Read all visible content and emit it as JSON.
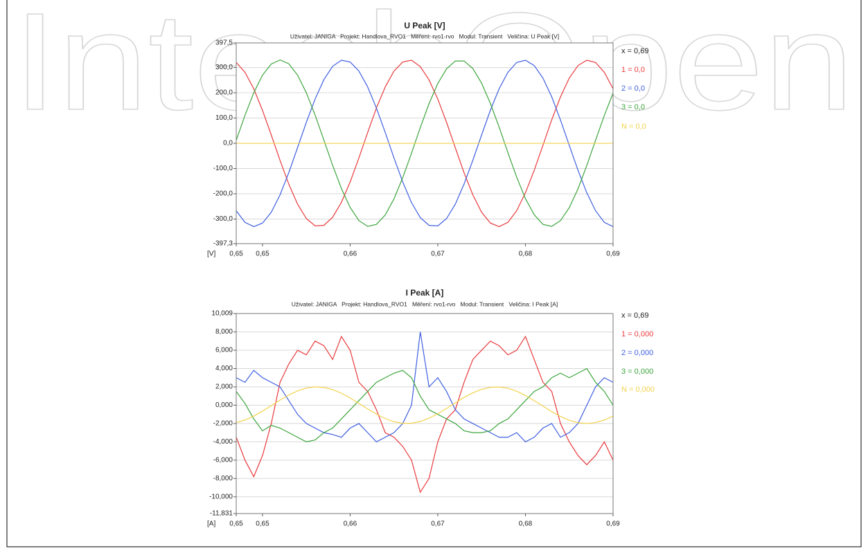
{
  "watermark": "IntechOpen",
  "chart_data": [
    {
      "type": "line",
      "title": "U Peak [V]",
      "subtitle": "Uživatel: JANIGA   Projekt: Handlova_RVO1   Měření: rvo1-rvo   Modul: Transient   Veličina: U Peak [V]",
      "y_unit": "[V]",
      "cursor_label": "x = 0,69",
      "x": [
        0.647,
        0.648,
        0.649,
        0.65,
        0.651,
        0.652,
        0.653,
        0.654,
        0.655,
        0.656,
        0.657,
        0.658,
        0.659,
        0.66,
        0.661,
        0.662,
        0.663,
        0.664,
        0.665,
        0.666,
        0.667,
        0.668,
        0.669,
        0.67,
        0.671,
        0.672,
        0.673,
        0.674,
        0.675,
        0.676,
        0.677,
        0.678,
        0.679,
        0.68,
        0.681,
        0.682,
        0.683,
        0.684,
        0.685,
        0.686,
        0.687,
        0.688,
        0.689,
        0.69
      ],
      "xlim": [
        0.647,
        0.69
      ],
      "xticks": [
        {
          "value": 0.647,
          "label": "0,65"
        },
        {
          "value": 0.65,
          "label": "0,65"
        },
        {
          "value": 0.66,
          "label": "0,66"
        },
        {
          "value": 0.67,
          "label": "0,67"
        },
        {
          "value": 0.68,
          "label": "0,68"
        },
        {
          "value": 0.69,
          "label": "0,69"
        }
      ],
      "ylim": [
        -397.3,
        397.5
      ],
      "yticks": [
        {
          "value": 397.5,
          "label": "397,5"
        },
        {
          "value": 300,
          "label": "300,0"
        },
        {
          "value": 200,
          "label": "200,0"
        },
        {
          "value": 100,
          "label": "100,0"
        },
        {
          "value": 0,
          "label": "0,0"
        },
        {
          "value": -100,
          "label": "-100,0"
        },
        {
          "value": -200,
          "label": "-200,0"
        },
        {
          "value": -300,
          "label": "-300,0"
        },
        {
          "value": -397.3,
          "label": "-397,3"
        }
      ],
      "grid": true,
      "series": [
        {
          "name": "1 = 0,0",
          "color": "#e8383a",
          "values": [
            320,
            281,
            216,
            130,
            33,
            -68,
            -162,
            -241,
            -298,
            -327,
            -325,
            -293,
            -234,
            -153,
            -58,
            43,
            140,
            223,
            286,
            322,
            329,
            304,
            251,
            175,
            83,
            -18,
            -117,
            -204,
            -273,
            -316,
            -330,
            -313,
            -267,
            -196,
            -107,
            -8,
            93,
            184,
            258,
            308,
            329,
            320,
            281,
            216
          ]
        },
        {
          "name": "2 = 0,0",
          "color": "#3d5ee0",
          "values": [
            -267,
            -313,
            -330,
            -316,
            -273,
            -204,
            -116,
            -17,
            83,
            175,
            252,
            305,
            329,
            322,
            286,
            223,
            139,
            43,
            -58,
            -153,
            -235,
            -294,
            -325,
            -327,
            -298,
            -241,
            -161,
            -67,
            33,
            131,
            216,
            281,
            320,
            329,
            308,
            258,
            184,
            92,
            -8,
            -107,
            -196,
            -267,
            -313,
            -330
          ]
        },
        {
          "name": "3 = 0,0",
          "color": "#3aa43a",
          "values": [
            12,
            111,
            200,
            270,
            314,
            330,
            315,
            270,
            200,
            112,
            13,
            -87,
            -179,
            -254,
            -306,
            -329,
            -321,
            -284,
            -220,
            -136,
            -39,
            62,
            157,
            237,
            295,
            326,
            326,
            296,
            238,
            158,
            64,
            -37,
            -134,
            -219,
            -283,
            -321,
            -329,
            -306,
            -255,
            -180,
            -88,
            12,
            110,
            199
          ]
        },
        {
          "name": "N = 0,0",
          "color": "#f2d24a",
          "values": [
            0,
            0,
            0,
            0,
            0,
            0,
            0,
            0,
            0,
            0,
            0,
            0,
            0,
            0,
            0,
            0,
            0,
            0,
            0,
            0,
            0,
            0,
            0,
            0,
            0,
            0,
            0,
            0,
            0,
            0,
            0,
            0,
            0,
            0,
            0,
            0,
            0,
            0,
            0,
            0,
            0,
            0,
            0,
            0
          ]
        }
      ]
    },
    {
      "type": "line",
      "title": "I Peak [A]",
      "subtitle": "Uživatel: JANIGA   Projekt: Handlova_RVO1   Měření: rvo1-rvo   Modul: Transient   Veličina: I Peak [A]",
      "y_unit": "[A]",
      "cursor_label": "x = 0,69",
      "x": [
        0.647,
        0.648,
        0.649,
        0.65,
        0.651,
        0.652,
        0.653,
        0.654,
        0.655,
        0.656,
        0.657,
        0.658,
        0.659,
        0.66,
        0.661,
        0.662,
        0.663,
        0.664,
        0.665,
        0.666,
        0.667,
        0.668,
        0.669,
        0.67,
        0.671,
        0.672,
        0.673,
        0.674,
        0.675,
        0.676,
        0.677,
        0.678,
        0.679,
        0.68,
        0.681,
        0.682,
        0.683,
        0.684,
        0.685,
        0.686,
        0.687,
        0.688,
        0.689,
        0.69
      ],
      "xlim": [
        0.647,
        0.69
      ],
      "xticks": [
        {
          "value": 0.647,
          "label": "0,65"
        },
        {
          "value": 0.65,
          "label": "0,65"
        },
        {
          "value": 0.66,
          "label": "0,66"
        },
        {
          "value": 0.67,
          "label": "0,67"
        },
        {
          "value": 0.68,
          "label": "0,68"
        },
        {
          "value": 0.69,
          "label": "0,69"
        }
      ],
      "ylim": [
        -11.831,
        10.009
      ],
      "yticks": [
        {
          "value": 10.009,
          "label": "10,009"
        },
        {
          "value": 8,
          "label": "8,000"
        },
        {
          "value": 6,
          "label": "6,000"
        },
        {
          "value": 4,
          "label": "4,000"
        },
        {
          "value": 2,
          "label": "2,000"
        },
        {
          "value": 0,
          "label": "0,000"
        },
        {
          "value": -2,
          "label": "-2,000"
        },
        {
          "value": -4,
          "label": "-4,000"
        },
        {
          "value": -6,
          "label": "-6,000"
        },
        {
          "value": -8,
          "label": "-8,000"
        },
        {
          "value": -10,
          "label": "-10,000"
        },
        {
          "value": -11.831,
          "label": "-11,831"
        }
      ],
      "grid": true,
      "series": [
        {
          "name": "1 = 0,000",
          "color": "#e8383a",
          "values": [
            -3.5,
            -6,
            -7.8,
            -5.5,
            -2,
            2.5,
            4.5,
            6,
            5.5,
            7,
            6.5,
            5,
            7.5,
            6,
            2.5,
            1.5,
            -0.5,
            -3,
            -3.5,
            -4.5,
            -6,
            -9.5,
            -8,
            -4,
            -1.5,
            -0.5,
            2.5,
            5,
            6,
            7,
            6.5,
            5.5,
            6,
            7.5,
            5,
            2.5,
            1.5,
            -2,
            -4,
            -5.5,
            -6.5,
            -5.5,
            -4,
            -6
          ]
        },
        {
          "name": "2 = 0,000",
          "color": "#3d5ee0",
          "values": [
            3,
            2.5,
            3.8,
            3,
            2.5,
            2,
            0.5,
            -1,
            -2,
            -2.5,
            -3,
            -3.2,
            -3.5,
            -2.5,
            -2,
            -3,
            -4,
            -3.5,
            -3,
            -2,
            0,
            8,
            2,
            3,
            1.5,
            -0.5,
            -1.5,
            -2,
            -2.5,
            -3,
            -3.5,
            -3.5,
            -3,
            -4,
            -3.5,
            -2.5,
            -2,
            -3.5,
            -3,
            -2,
            0,
            2,
            3,
            2.5
          ]
        },
        {
          "name": "3 = 0,000",
          "color": "#3aa43a",
          "values": [
            1.5,
            0.2,
            -1.5,
            -2.8,
            -2.2,
            -2.5,
            -3,
            -3.5,
            -4,
            -3.8,
            -3,
            -2.5,
            -1.5,
            -0.5,
            0.5,
            1.5,
            2.5,
            3,
            3.5,
            3.8,
            3,
            1,
            -0.5,
            -1,
            -1.5,
            -2,
            -2.8,
            -3,
            -3,
            -2.8,
            -2,
            -1.5,
            -0.5,
            0.5,
            1.5,
            2,
            3,
            3.5,
            3,
            3.5,
            4,
            2.5,
            1.5,
            0
          ]
        },
        {
          "name": "N = 0,000",
          "color": "#f2d24a",
          "values": [
            -1.9,
            -1.62,
            -1.19,
            -0.65,
            -0.05,
            0.56,
            1.11,
            1.56,
            1.87,
            2,
            1.94,
            1.7,
            1.31,
            0.79,
            0.2,
            -0.41,
            -0.98,
            -1.46,
            -1.81,
            -1.98,
            -1.97,
            -1.78,
            -1.42,
            -0.93,
            -0.35,
            0.26,
            0.85,
            1.35,
            1.73,
            1.95,
            1.99,
            1.85,
            1.53,
            1.06,
            0.5,
            -0.1,
            -0.7,
            -1.23,
            -1.65,
            -1.91,
            -2,
            -1.9,
            -1.62,
            -1.2
          ]
        }
      ]
    }
  ]
}
